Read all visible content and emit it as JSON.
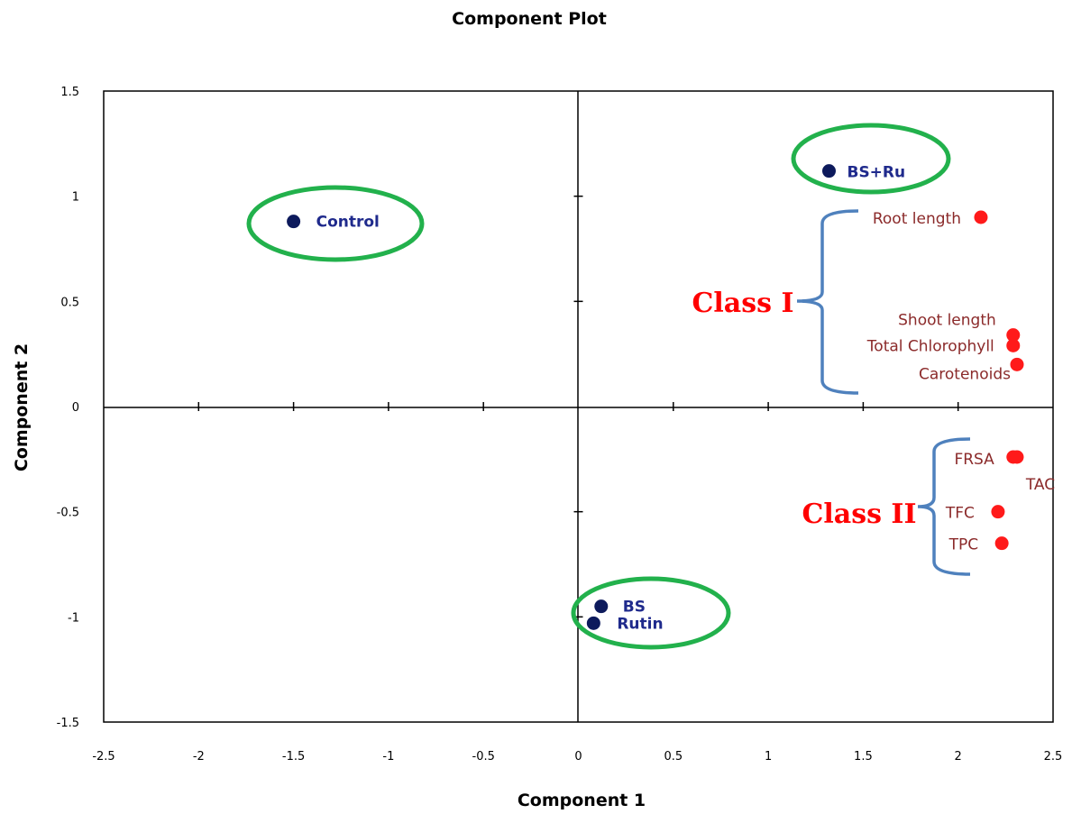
{
  "chart_data": {
    "type": "scatter",
    "title": "Component Plot",
    "xlabel": "Component 1",
    "ylabel": "Component 2",
    "xlim": [
      -2.5,
      2.5
    ],
    "ylim": [
      -1.5,
      1.5
    ],
    "xticks": [
      "-2.5",
      "-2",
      "-1.5",
      "-1",
      "-0.5",
      "0",
      "0.5",
      "1",
      "1.5",
      "2",
      "2.5"
    ],
    "yticks": [
      "1.5",
      "1",
      "0.5",
      "0",
      "-0.5",
      "-1",
      "-1.5"
    ],
    "grid": false,
    "treatments": {
      "color": "#0d1a5c",
      "points": [
        {
          "label": "Control",
          "x": -1.5,
          "y": 0.88
        },
        {
          "label": "BS+Ru",
          "x": 1.32,
          "y": 1.12
        },
        {
          "label": "BS",
          "x": 0.12,
          "y": -0.95
        },
        {
          "label": "Rutin",
          "x": 0.08,
          "y": -1.03
        }
      ]
    },
    "variables": {
      "color": "#ff1a1a",
      "points": [
        {
          "label": "Root length",
          "x": 2.12,
          "y": 0.9
        },
        {
          "label": "Shoot length",
          "x": 2.29,
          "y": 0.34
        },
        {
          "label": "Total Chlorophyll",
          "x": 2.29,
          "y": 0.29
        },
        {
          "label": "Carotenoids",
          "x": 2.31,
          "y": 0.2
        },
        {
          "label": "FRSA",
          "x": 2.29,
          "y": -0.24
        },
        {
          "label": "TAC",
          "x": 2.31,
          "y": -0.24
        },
        {
          "label": "TFC",
          "x": 2.21,
          "y": -0.5
        },
        {
          "label": "TPC",
          "x": 2.23,
          "y": -0.65
        }
      ]
    },
    "annotations": {
      "class_labels": [
        "Class I",
        "Class II"
      ],
      "ellipse_color": "#22b14c",
      "brace_color": "#4f81bd",
      "class_color": "#ff0000"
    }
  }
}
